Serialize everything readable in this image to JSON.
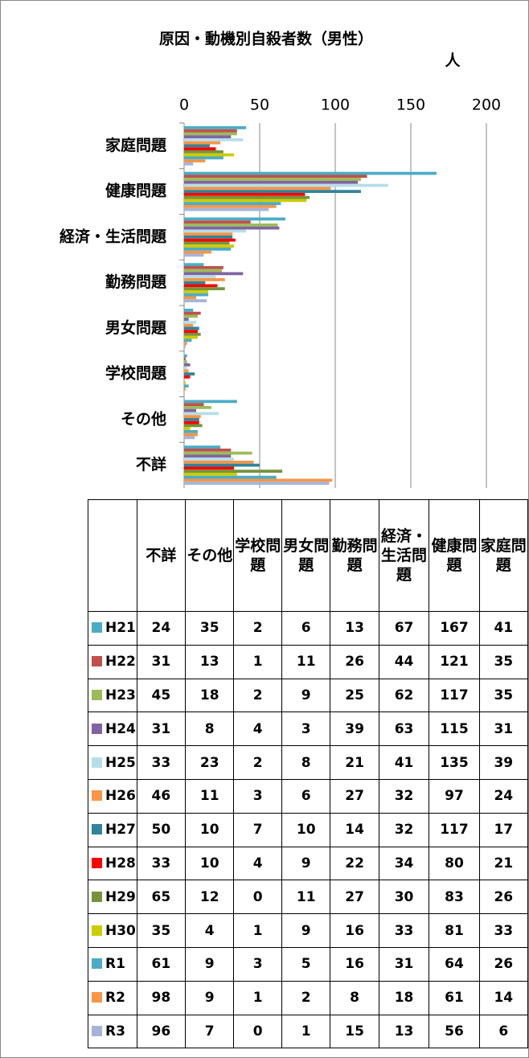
{
  "chart_data": {
    "type": "bar",
    "orientation": "horizontal",
    "title": "原因・動機別自殺者数（男性）",
    "unit_label": "人",
    "categories": [
      "不詳",
      "その他",
      "学校問題",
      "男女問題",
      "勤務問題",
      "経済・生活問題",
      "健康問題",
      "家庭問題"
    ],
    "xlim": [
      0,
      200
    ],
    "xticks": [
      0,
      50,
      100,
      150,
      200
    ],
    "grid": true,
    "series": [
      {
        "name": "H21",
        "color": "#4bacc6",
        "values": [
          24,
          35,
          2,
          6,
          13,
          67,
          167,
          41
        ]
      },
      {
        "name": "H22",
        "color": "#c0504d",
        "values": [
          31,
          13,
          1,
          11,
          26,
          44,
          121,
          35
        ]
      },
      {
        "name": "H23",
        "color": "#9bbb59",
        "values": [
          45,
          18,
          2,
          9,
          25,
          62,
          117,
          35
        ]
      },
      {
        "name": "H24",
        "color": "#8064a2",
        "values": [
          31,
          8,
          4,
          3,
          39,
          63,
          115,
          31
        ]
      },
      {
        "name": "H25",
        "color": "#b7dee8",
        "values": [
          33,
          23,
          2,
          8,
          21,
          41,
          135,
          39
        ]
      },
      {
        "name": "H26",
        "color": "#f79646",
        "values": [
          46,
          11,
          3,
          6,
          27,
          32,
          97,
          24
        ]
      },
      {
        "name": "H27",
        "color": "#31849b",
        "values": [
          50,
          10,
          7,
          10,
          14,
          32,
          117,
          17
        ]
      },
      {
        "name": "H28",
        "color": "#ff0000",
        "values": [
          33,
          10,
          4,
          9,
          22,
          34,
          80,
          21
        ]
      },
      {
        "name": "H29",
        "color": "#77933c",
        "values": [
          65,
          12,
          0,
          11,
          27,
          30,
          83,
          26
        ]
      },
      {
        "name": "H30",
        "color": "#cccc00",
        "values": [
          35,
          4,
          1,
          9,
          16,
          33,
          81,
          33
        ]
      },
      {
        "name": "R1",
        "color": "#4bacc6",
        "values": [
          61,
          9,
          3,
          5,
          16,
          31,
          64,
          26
        ]
      },
      {
        "name": "R2",
        "color": "#f79646",
        "values": [
          98,
          9,
          1,
          2,
          8,
          18,
          61,
          14
        ]
      },
      {
        "name": "R3",
        "color": "#a5b5d9",
        "values": [
          96,
          7,
          0,
          1,
          15,
          13,
          56,
          6
        ]
      }
    ]
  }
}
